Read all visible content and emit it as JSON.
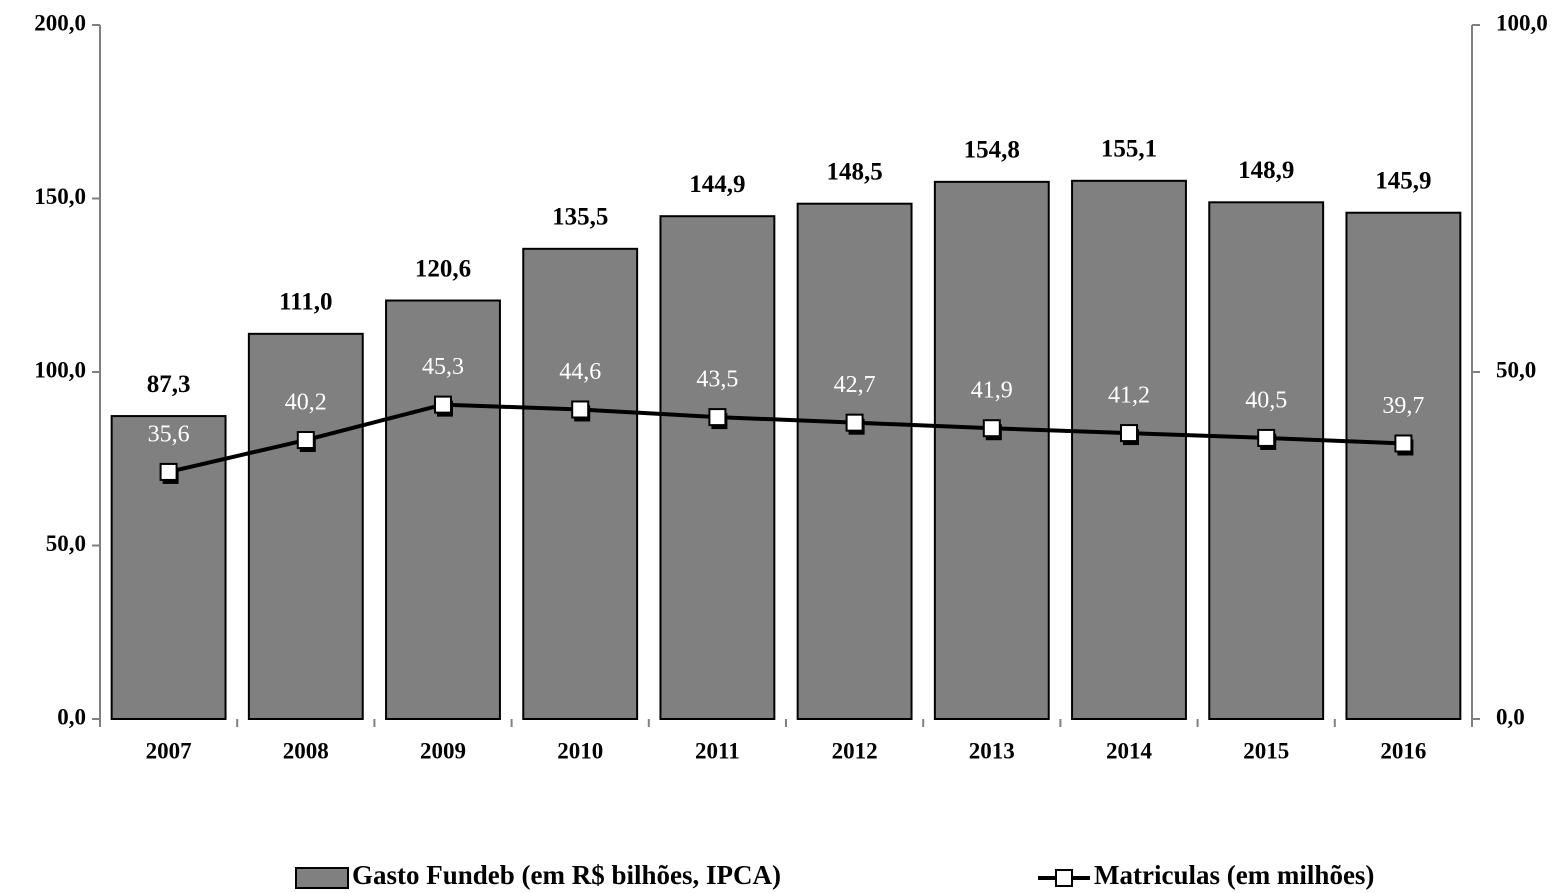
{
  "chart_data": {
    "type": "bar",
    "categories": [
      "2007",
      "2008",
      "2009",
      "2010",
      "2011",
      "2012",
      "2013",
      "2014",
      "2015",
      "2016"
    ],
    "series": [
      {
        "name": "Gasto Fundeb (em R$ bilhões, IPCA)",
        "color": "#808080",
        "values": [
          87.3,
          111.0,
          120.6,
          135.5,
          144.9,
          148.5,
          154.8,
          155.1,
          148.9,
          145.9
        ],
        "value_labels": [
          "87,3",
          "111,0",
          "120,6",
          "135,5",
          "144,9",
          "148,5",
          "154,8",
          "155,1",
          "148,9",
          "145,9"
        ]
      },
      {
        "name": "Matriculas (em milhões)",
        "color": "#000000",
        "type": "line",
        "axis": "y2",
        "values": [
          35.6,
          40.2,
          45.3,
          44.6,
          43.5,
          42.7,
          41.9,
          41.2,
          40.5,
          39.7
        ],
        "value_labels": [
          "35,6",
          "40,2",
          "45,3",
          "44,6",
          "43,5",
          "42,7",
          "41,9",
          "41,2",
          "40,5",
          "39,7"
        ]
      }
    ],
    "ylim": [
      0,
      200
    ],
    "yticks": [
      {
        "value": 0,
        "label": "0,0"
      },
      {
        "value": 50,
        "label": "50,0"
      },
      {
        "value": 100,
        "label": "100,0"
      },
      {
        "value": 150,
        "label": "150,0"
      },
      {
        "value": 200,
        "label": "200,0"
      }
    ],
    "y2lim": [
      0,
      100
    ],
    "y2ticks": [
      {
        "value": 0,
        "label": "0,0"
      },
      {
        "value": 50,
        "label": "50,0"
      },
      {
        "value": 100,
        "label": "100,0"
      }
    ],
    "legend": "bottom"
  }
}
